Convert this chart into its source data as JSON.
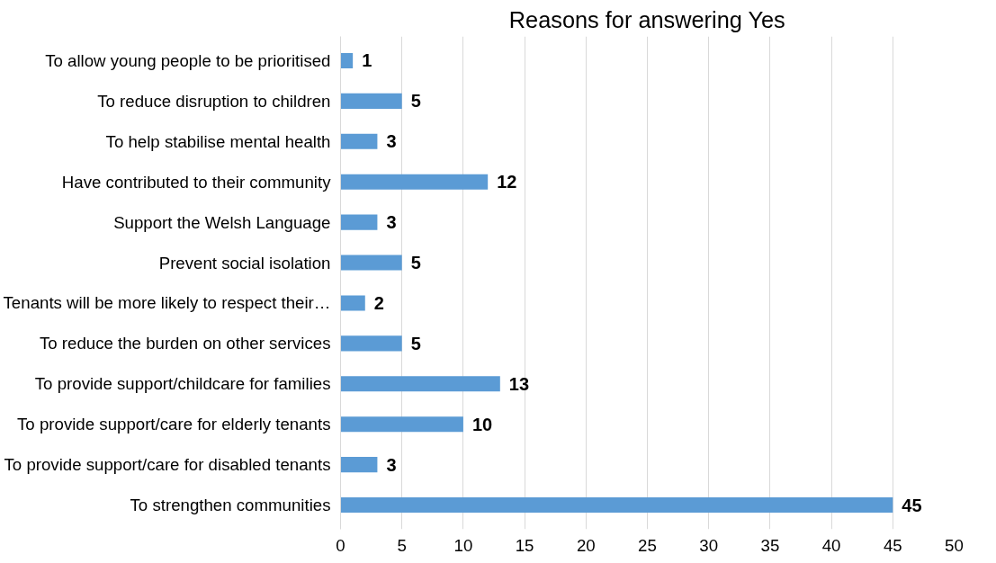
{
  "chart_data": {
    "type": "bar",
    "orientation": "horizontal",
    "title": "Reasons for answering Yes",
    "categories": [
      "To allow young people to be prioritised",
      "To reduce disruption to children",
      "To help stabilise mental health",
      "Have contributed to their community",
      "Support the Welsh Language",
      "Prevent social isolation",
      "Tenants will be more likely to respect their…",
      "To reduce the burden on other services",
      "To provide support/childcare for families",
      "To provide support/care for elderly tenants",
      "To provide support/care for disabled tenants",
      "To strengthen communities"
    ],
    "values": [
      1,
      5,
      3,
      12,
      3,
      5,
      2,
      5,
      13,
      10,
      3,
      45
    ],
    "color": "#5b9bd5",
    "xlim": [
      0,
      50
    ],
    "xticks": [
      0,
      5,
      10,
      15,
      20,
      25,
      30,
      35,
      40,
      45,
      50
    ],
    "grid": "x",
    "data_labels": true
  }
}
